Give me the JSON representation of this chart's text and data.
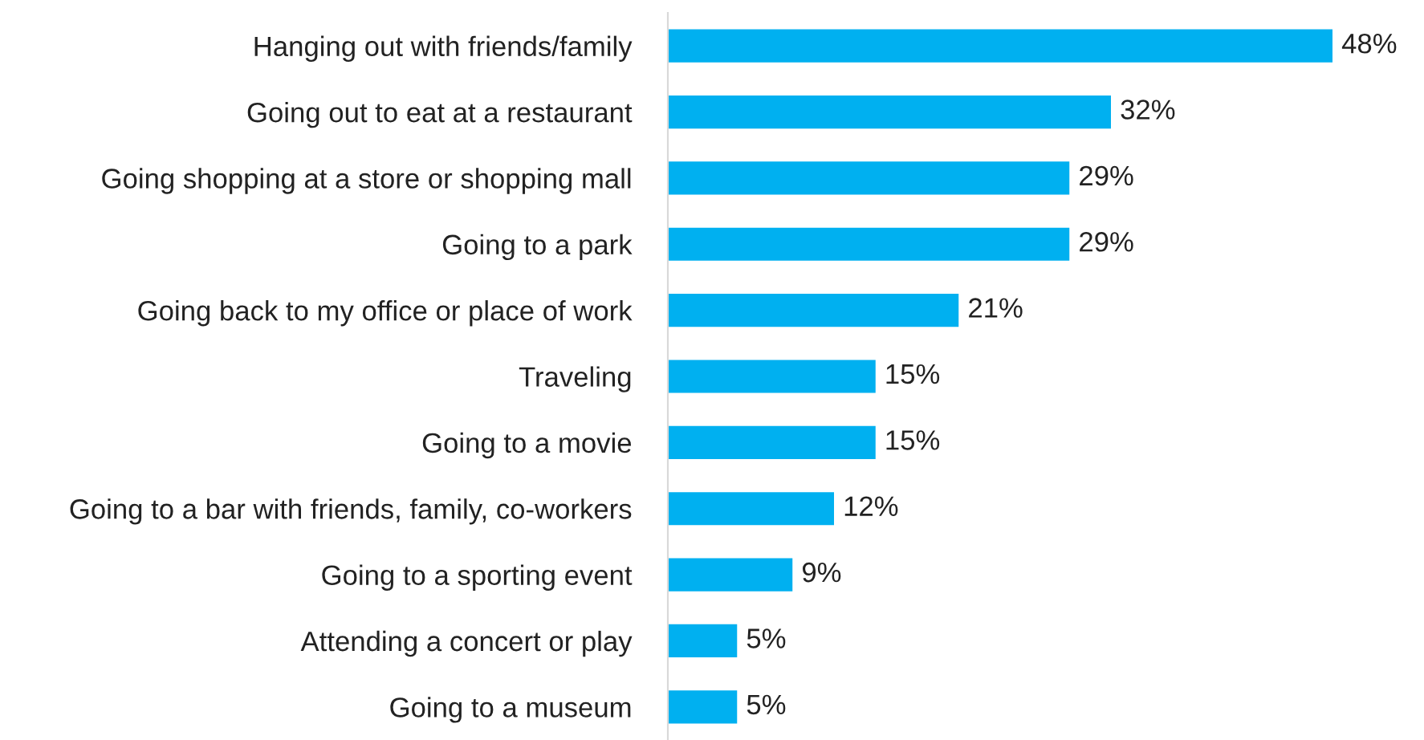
{
  "chart_data": {
    "type": "bar",
    "orientation": "horizontal",
    "categories": [
      "Hanging out with friends/family",
      "Going out to eat at a restaurant",
      "Going shopping at a store or shopping mall",
      "Going to a park",
      "Going back to my office or place of work",
      "Traveling",
      "Going to a movie",
      "Going to a bar with friends, family, co-workers",
      "Going to a sporting event",
      "Attending a concert or play",
      "Going to a museum"
    ],
    "values": [
      48,
      32,
      29,
      29,
      21,
      15,
      15,
      12,
      9,
      5,
      5
    ],
    "value_labels": [
      "48%",
      "32%",
      "29%",
      "29%",
      "21%",
      "15%",
      "15%",
      "12%",
      "9%",
      "5%",
      "5%"
    ],
    "color": "#00b0f0",
    "grid": false,
    "legend": false
  }
}
